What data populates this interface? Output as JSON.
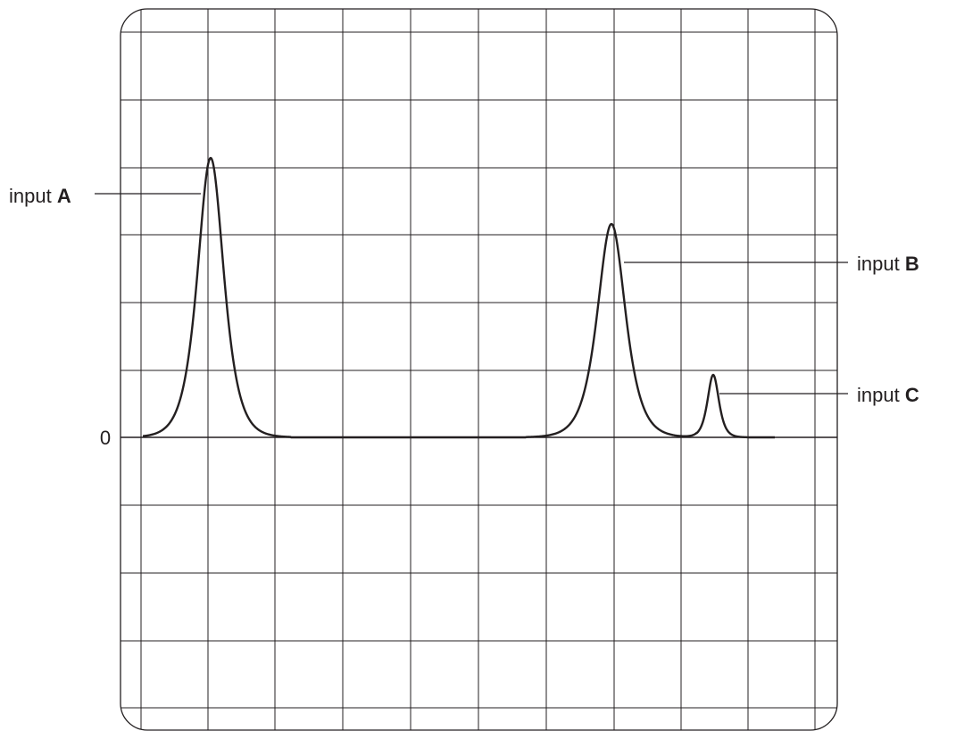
{
  "screen": {
    "zero_label": "0",
    "grid": {
      "columns": 10,
      "rows": 10
    },
    "colors": {
      "ink": "#231f20",
      "background": "#ffffff"
    }
  },
  "labels": {
    "input_a": {
      "prefix": "input ",
      "letter": "A"
    },
    "input_b": {
      "prefix": "input ",
      "letter": "B"
    },
    "input_c": {
      "prefix": "input ",
      "letter": "C"
    }
  }
}
